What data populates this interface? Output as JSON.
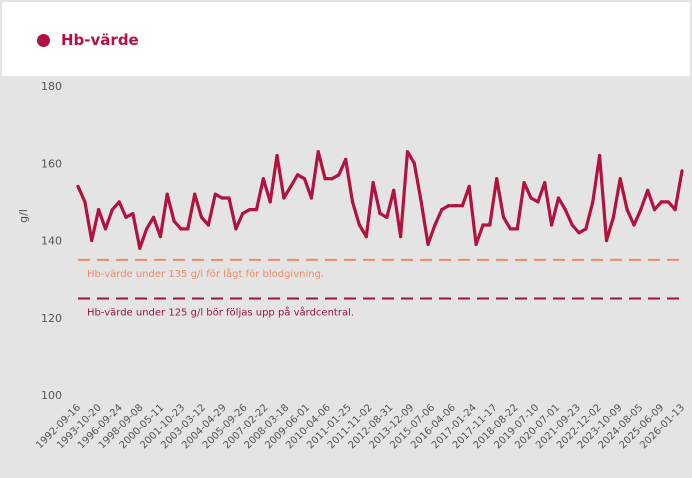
{
  "legend": {
    "label": "Hb-värde",
    "color": "#b2123f"
  },
  "chart_data": {
    "type": "line",
    "ylabel": "g/l",
    "ylim": [
      100,
      180
    ],
    "yticks": [
      100,
      120,
      140,
      160,
      180
    ],
    "xtick_labels": [
      "1992-09-16",
      "1993-10-20",
      "1996-09-24",
      "1998-09-08",
      "2000-05-11",
      "2001-10-23",
      "2003-03-12",
      "2004-04-29",
      "2005-09-26",
      "2007-02-22",
      "2008-03-18",
      "2009-06-01",
      "2010-04-06",
      "2011-01-25",
      "2011-11-02",
      "2012-08-31",
      "2013-12-09",
      "2015-07-06",
      "2016-04-06",
      "2017-01-24",
      "2017-11-17",
      "2018-08-22",
      "2019-07-10",
      "2020-07-01",
      "2021-09-23",
      "2022-12-02",
      "2023-10-09",
      "2024-08-05",
      "2025-06-09",
      "2026-01-13"
    ],
    "series": [
      {
        "name": "Hb-värde",
        "color": "#b2123f",
        "values": [
          154,
          150,
          140,
          148,
          143,
          148,
          150,
          146,
          147,
          138,
          143,
          146,
          141,
          152,
          145,
          143,
          143,
          152,
          146,
          144,
          152,
          151,
          151,
          143,
          147,
          148,
          148,
          156,
          150,
          162,
          151,
          154,
          157,
          156,
          151,
          163,
          156,
          156,
          157,
          161,
          150,
          144,
          141,
          155,
          147,
          146,
          153,
          141,
          163,
          160,
          150,
          139,
          144,
          148,
          149,
          149,
          149,
          154,
          139,
          144,
          144,
          156,
          146,
          143,
          143,
          155,
          151,
          150,
          155,
          144,
          151,
          148,
          144,
          142,
          143,
          150,
          162,
          140,
          146,
          156,
          148,
          144,
          148,
          153,
          148,
          150,
          150,
          148,
          158
        ]
      }
    ],
    "reference_lines": [
      {
        "value": 135,
        "label": "Hb-värde under 135 g/l för lågt för blodgivning.",
        "color": "#ee8a68"
      },
      {
        "value": 125,
        "label": "Hb-värde under 125 g/l bör följas upp på vårdcentral.",
        "color": "#9e1540"
      }
    ],
    "grid": false,
    "legend_position": "top-left"
  }
}
